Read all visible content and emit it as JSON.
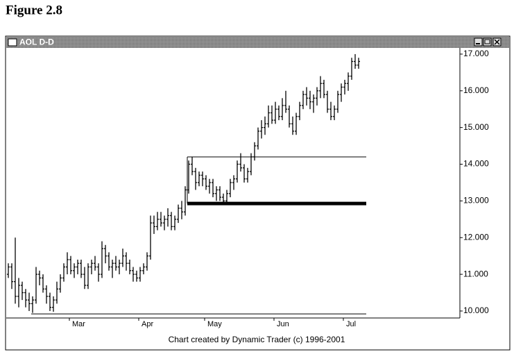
{
  "figure_title": "Figure 2.8",
  "window_title": "AOL D-D",
  "footer": "Chart created by Dynamic Trader (c) 1996-2001",
  "chart_data": {
    "type": "ohlc",
    "color": "#000000",
    "ohlc": [
      [
        11.0,
        11.3,
        10.9,
        11.2
      ],
      [
        11.2,
        11.3,
        10.6,
        10.8
      ],
      [
        10.8,
        12.0,
        10.2,
        10.4
      ],
      [
        10.4,
        10.9,
        10.1,
        10.7
      ],
      [
        10.7,
        10.8,
        10.3,
        10.5
      ],
      [
        10.5,
        10.6,
        10.1,
        10.3
      ],
      [
        10.3,
        10.5,
        10.0,
        10.2
      ],
      [
        10.2,
        10.4,
        9.95,
        10.3
      ],
      [
        10.3,
        11.2,
        10.2,
        11.0
      ],
      [
        11.0,
        11.1,
        10.7,
        10.9
      ],
      [
        10.9,
        11.0,
        10.5,
        10.6
      ],
      [
        10.6,
        10.7,
        10.2,
        10.4
      ],
      [
        10.4,
        10.5,
        10.0,
        10.1
      ],
      [
        10.1,
        10.4,
        9.98,
        10.3
      ],
      [
        10.3,
        10.8,
        10.2,
        10.6
      ],
      [
        10.6,
        11.0,
        10.5,
        10.9
      ],
      [
        10.9,
        11.3,
        10.8,
        11.2
      ],
      [
        11.2,
        11.6,
        11.0,
        11.4
      ],
      [
        11.4,
        11.5,
        11.0,
        11.1
      ],
      [
        11.1,
        11.3,
        10.9,
        11.2
      ],
      [
        11.2,
        11.4,
        11.0,
        11.3
      ],
      [
        11.3,
        11.4,
        10.9,
        11.0
      ],
      [
        11.0,
        11.2,
        10.6,
        10.7
      ],
      [
        10.7,
        11.3,
        10.6,
        11.2
      ],
      [
        11.2,
        11.4,
        11.0,
        11.3
      ],
      [
        11.3,
        11.5,
        11.1,
        11.2
      ],
      [
        11.2,
        11.3,
        10.8,
        11.0
      ],
      [
        11.0,
        11.9,
        10.9,
        11.7
      ],
      [
        11.7,
        11.8,
        11.3,
        11.5
      ],
      [
        11.5,
        11.6,
        11.1,
        11.2
      ],
      [
        11.2,
        11.4,
        10.9,
        11.3
      ],
      [
        11.3,
        11.5,
        11.1,
        11.2
      ],
      [
        11.2,
        11.4,
        11.0,
        11.3
      ],
      [
        11.3,
        11.7,
        11.2,
        11.5
      ],
      [
        11.5,
        11.6,
        11.1,
        11.3
      ],
      [
        11.3,
        11.4,
        11.0,
        11.1
      ],
      [
        11.1,
        11.2,
        10.8,
        11.0
      ],
      [
        11.0,
        11.1,
        10.8,
        10.9
      ],
      [
        10.9,
        11.2,
        10.8,
        11.1
      ],
      [
        11.1,
        11.3,
        11.0,
        11.2
      ],
      [
        11.2,
        11.6,
        11.1,
        11.5
      ],
      [
        11.5,
        12.6,
        11.4,
        12.4
      ],
      [
        12.4,
        12.6,
        12.1,
        12.3
      ],
      [
        12.3,
        12.7,
        12.2,
        12.5
      ],
      [
        12.5,
        12.7,
        12.3,
        12.4
      ],
      [
        12.4,
        12.6,
        12.2,
        12.5
      ],
      [
        12.5,
        12.8,
        12.3,
        12.6
      ],
      [
        12.6,
        12.7,
        12.2,
        12.3
      ],
      [
        12.3,
        12.6,
        12.2,
        12.5
      ],
      [
        12.5,
        12.9,
        12.4,
        12.8
      ],
      [
        12.8,
        13.0,
        12.5,
        12.7
      ],
      [
        12.7,
        13.4,
        12.6,
        13.3
      ],
      [
        13.3,
        14.1,
        13.2,
        14.0
      ],
      [
        14.0,
        14.2,
        13.7,
        13.8
      ],
      [
        13.8,
        13.9,
        13.3,
        13.5
      ],
      [
        13.5,
        13.8,
        13.4,
        13.7
      ],
      [
        13.7,
        13.8,
        13.4,
        13.6
      ],
      [
        13.6,
        13.7,
        13.3,
        13.4
      ],
      [
        13.4,
        13.6,
        13.2,
        13.5
      ],
      [
        13.5,
        13.6,
        13.1,
        13.2
      ],
      [
        13.2,
        13.4,
        13.0,
        13.3
      ],
      [
        13.3,
        13.4,
        13.0,
        13.1
      ],
      [
        13.1,
        13.2,
        12.95,
        13.0
      ],
      [
        13.0,
        13.3,
        12.93,
        13.2
      ],
      [
        13.2,
        13.6,
        13.1,
        13.5
      ],
      [
        13.5,
        13.7,
        13.3,
        13.6
      ],
      [
        13.6,
        14.1,
        13.5,
        14.0
      ],
      [
        14.0,
        14.3,
        13.8,
        13.9
      ],
      [
        13.9,
        14.0,
        13.5,
        13.6
      ],
      [
        13.6,
        13.9,
        13.5,
        13.8
      ],
      [
        13.8,
        14.3,
        13.7,
        14.2
      ],
      [
        14.2,
        14.6,
        14.1,
        14.5
      ],
      [
        14.5,
        15.0,
        14.4,
        14.9
      ],
      [
        14.9,
        15.2,
        14.7,
        15.0
      ],
      [
        15.0,
        15.3,
        14.8,
        15.1
      ],
      [
        15.1,
        15.6,
        15.0,
        15.4
      ],
      [
        15.4,
        15.6,
        15.1,
        15.2
      ],
      [
        15.2,
        15.7,
        15.1,
        15.5
      ],
      [
        15.5,
        15.6,
        15.2,
        15.3
      ],
      [
        15.3,
        15.8,
        15.2,
        15.6
      ],
      [
        15.6,
        16.0,
        15.4,
        15.5
      ],
      [
        15.5,
        15.6,
        15.0,
        15.1
      ],
      [
        15.1,
        15.3,
        14.8,
        14.9
      ],
      [
        14.9,
        15.4,
        14.8,
        15.3
      ],
      [
        15.3,
        15.7,
        15.2,
        15.6
      ],
      [
        15.6,
        16.0,
        15.5,
        15.9
      ],
      [
        15.9,
        16.1,
        15.6,
        15.8
      ],
      [
        15.8,
        16.0,
        15.5,
        15.7
      ],
      [
        15.7,
        15.9,
        15.4,
        15.8
      ],
      [
        15.8,
        16.1,
        15.6,
        16.0
      ],
      [
        16.0,
        16.4,
        15.8,
        16.2
      ],
      [
        16.2,
        16.3,
        15.8,
        15.9
      ],
      [
        15.9,
        16.0,
        15.4,
        15.5
      ],
      [
        15.5,
        15.7,
        15.2,
        15.3
      ],
      [
        15.3,
        15.6,
        15.2,
        15.5
      ],
      [
        15.5,
        16.0,
        15.4,
        15.9
      ],
      [
        15.9,
        16.2,
        15.7,
        16.1
      ],
      [
        16.1,
        16.3,
        15.9,
        16.2
      ],
      [
        16.2,
        16.5,
        16.0,
        16.4
      ],
      [
        16.4,
        16.9,
        16.3,
        16.8
      ],
      [
        16.8,
        17.0,
        16.6,
        16.7
      ],
      [
        16.7,
        16.9,
        16.6,
        16.8
      ]
    ],
    "xticks": [
      {
        "value": 18,
        "label": "Mar"
      },
      {
        "value": 38,
        "label": "Apr"
      },
      {
        "value": 57,
        "label": "May"
      },
      {
        "value": 77,
        "label": "Jun"
      },
      {
        "value": 97,
        "label": "Jul"
      }
    ],
    "ylim": [
      9.81,
      17.15
    ],
    "yticks": [
      {
        "value": 10,
        "label": "10.000"
      },
      {
        "value": 11,
        "label": "11.000"
      },
      {
        "value": 12,
        "label": "12.000"
      },
      {
        "value": 13,
        "label": "13.000"
      },
      {
        "value": 14,
        "label": "14.000"
      },
      {
        "value": 15,
        "label": "15.000"
      },
      {
        "value": 16,
        "label": "16.000"
      },
      {
        "value": 17,
        "label": "17.000"
      }
    ],
    "levels": [
      {
        "value": 9.92,
        "start": 7,
        "width": 1
      },
      {
        "value": 14.2,
        "start": 52,
        "width": 1
      },
      {
        "value": 12.93,
        "start": 52,
        "width": 5
      }
    ]
  }
}
